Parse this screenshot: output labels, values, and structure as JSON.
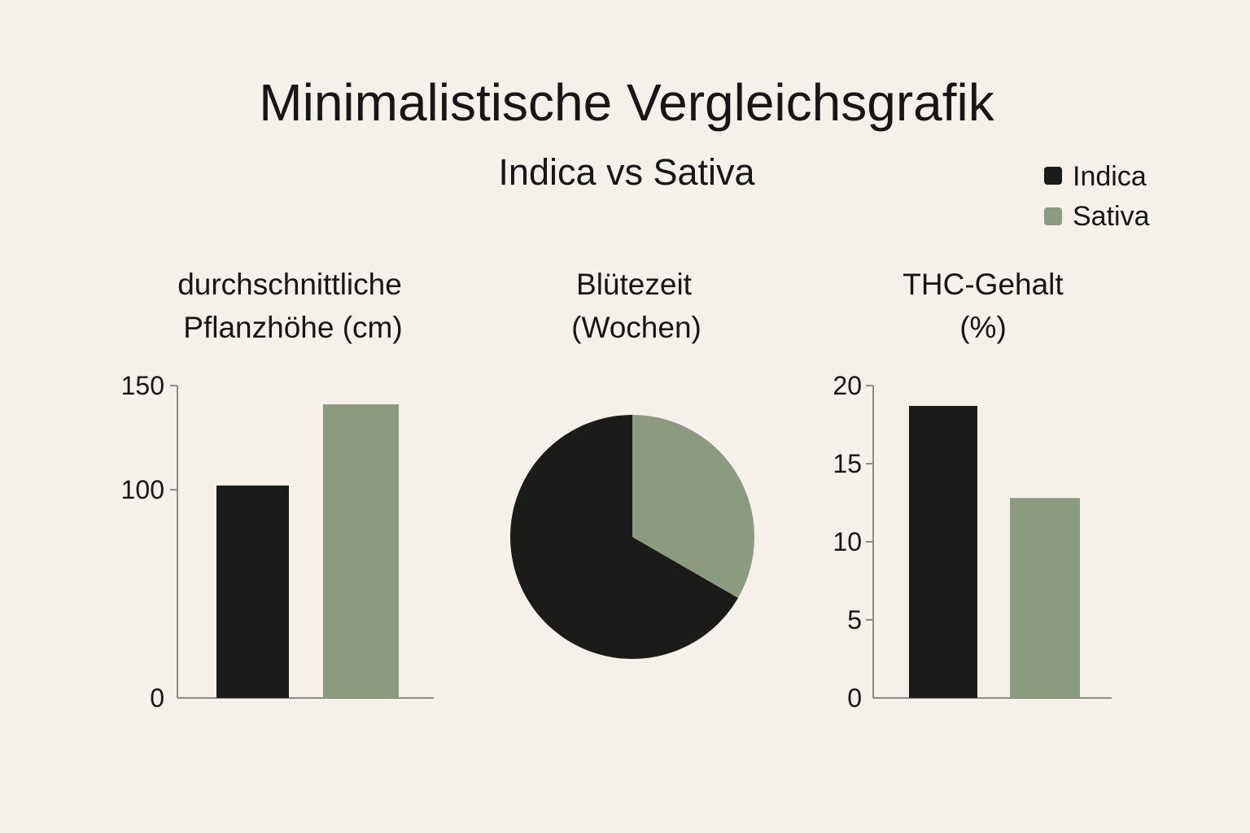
{
  "title": "Minimalistische Vergleichsgrafik",
  "subtitle": "Indica vs Sativa",
  "colors": {
    "indica": "#1b1b1a",
    "sativa": "#8c9a80",
    "axis": "#8a8a86",
    "background": "#f5f1ea"
  },
  "legend": {
    "placement": "top-right",
    "items": [
      {
        "label": "Indica",
        "color": "#1b1b1a"
      },
      {
        "label": "Sativa",
        "color": "#8c9a80"
      }
    ]
  },
  "chart_data": [
    {
      "type": "bar",
      "title_lines": [
        "durchschnittliche",
        "Pflanzhöhe (cm)"
      ],
      "categories": [
        "Indica",
        "Sativa"
      ],
      "values": [
        102,
        141
      ],
      "colors": [
        "#1b1b1a",
        "#8c9a80"
      ],
      "ylim": [
        0,
        150
      ],
      "ticks": [
        0,
        100,
        150
      ]
    },
    {
      "type": "pie",
      "title_lines": [
        "Blütezeit",
        "(Wochen)"
      ],
      "categories": [
        "Indica",
        "Sativa"
      ],
      "values": [
        8,
        4
      ],
      "colors": [
        "#1b1b1a",
        "#8c9a80"
      ]
    },
    {
      "type": "bar",
      "title_lines": [
        "THC-Gehalt",
        "(%)"
      ],
      "categories": [
        "Indica",
        "Sativa"
      ],
      "values": [
        18.7,
        12.8
      ],
      "colors": [
        "#1b1b1a",
        "#8c9a80"
      ],
      "ylim": [
        0,
        20
      ],
      "ticks": [
        0,
        5,
        10,
        15,
        20
      ]
    }
  ]
}
